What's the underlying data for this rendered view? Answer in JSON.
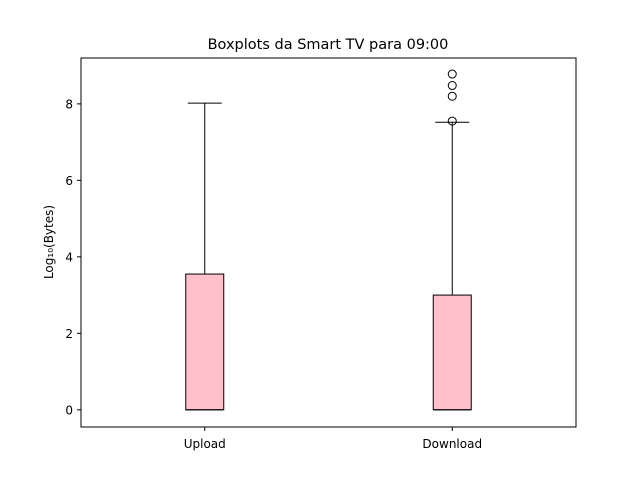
{
  "chart_data": {
    "type": "box",
    "title": "Boxplots da Smart TV para 09:00",
    "xlabel": "",
    "ylabel": "Log₁₀(Bytes)",
    "ylim": [
      -0.45,
      9.2
    ],
    "yticks": [
      0,
      2,
      4,
      6,
      8
    ],
    "categories": [
      "Upload",
      "Download"
    ],
    "box_color": "#ffc0cb",
    "edge_color": "#000000",
    "boxes": [
      {
        "category": "Upload",
        "whisker_low": 0.0,
        "q1": 0.0,
        "median": 0.0,
        "q3": 3.55,
        "whisker_high": 8.02,
        "outliers": []
      },
      {
        "category": "Download",
        "whisker_low": 0.0,
        "q1": 0.0,
        "median": 0.0,
        "q3": 3.0,
        "whisker_high": 7.52,
        "outliers": [
          7.55,
          8.2,
          8.48,
          8.78
        ]
      }
    ],
    "grid": false,
    "legend": "none"
  }
}
